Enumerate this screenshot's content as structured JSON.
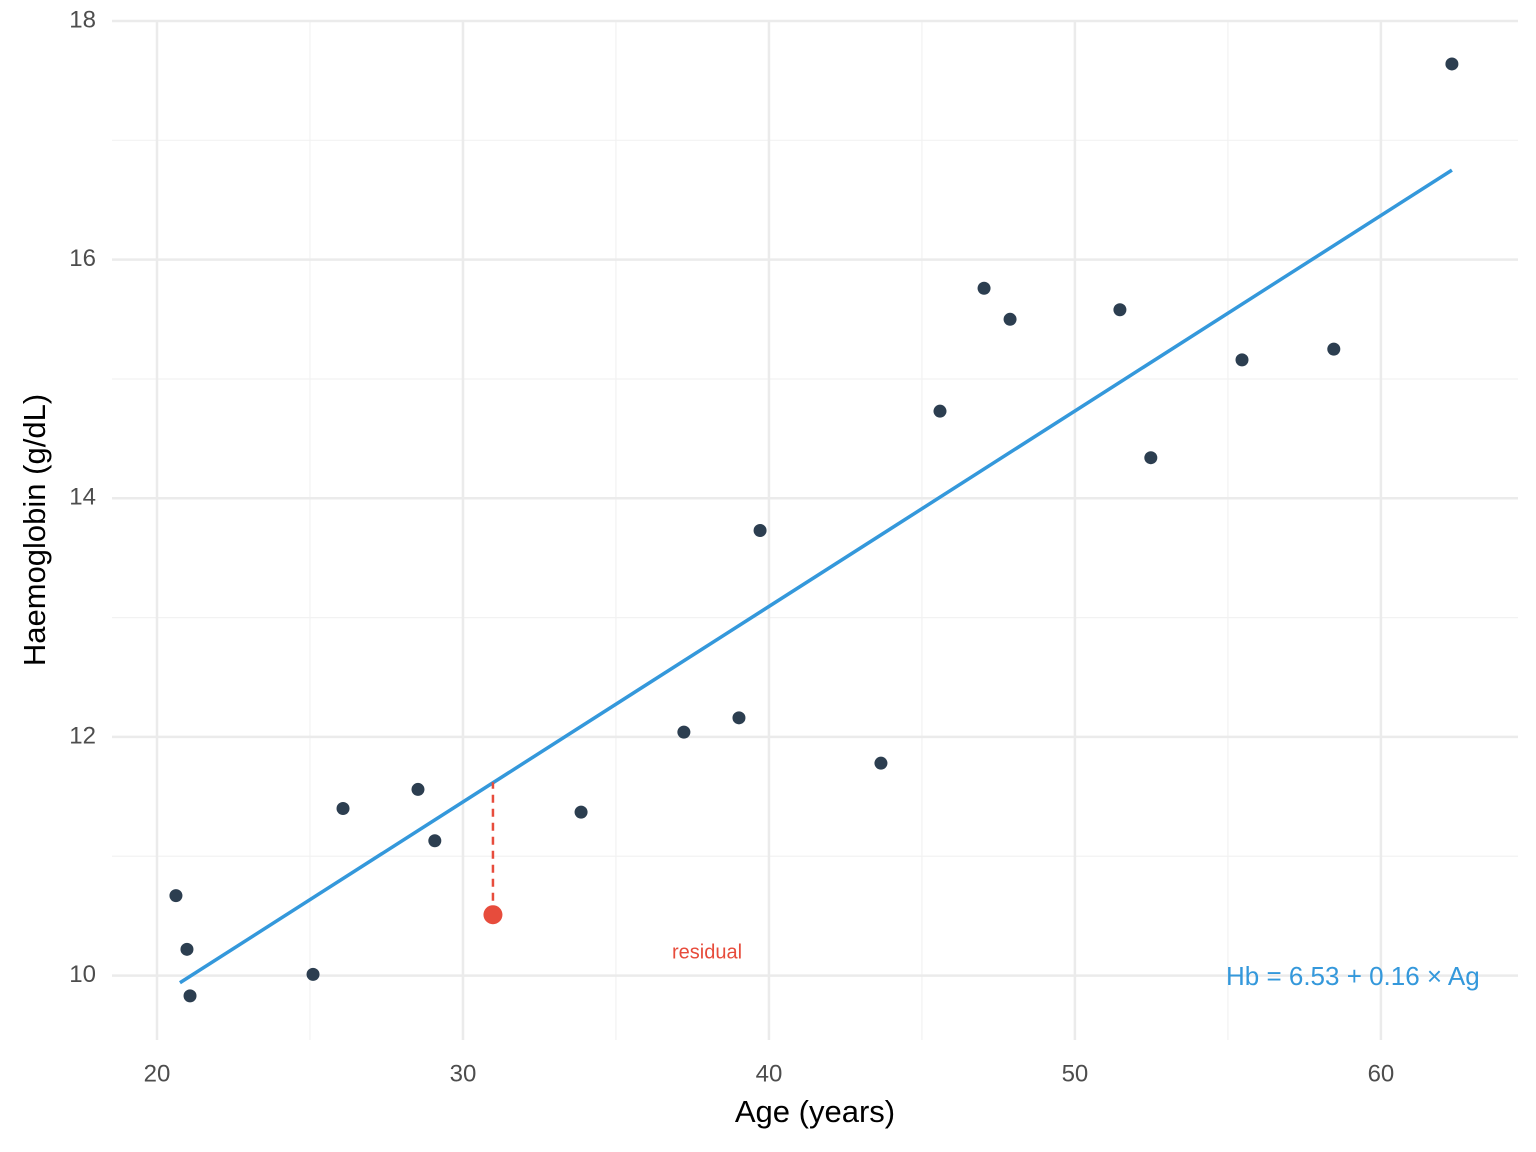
{
  "chart_data": {
    "type": "scatter",
    "x_label": "Age (years)",
    "y_label": "Haemoglobin (g/dL)",
    "x": [
      20.62,
      20.98,
      21.08,
      25.1,
      26.08,
      28.53,
      29.08,
      33.86,
      37.22,
      39.02,
      39.71,
      43.66,
      45.59,
      47.03,
      47.88,
      51.47,
      52.48,
      55.46,
      58.46,
      62.32
    ],
    "values": [
      10.67,
      10.22,
      9.83,
      10.01,
      11.4,
      11.56,
      11.13,
      11.37,
      12.04,
      12.16,
      13.73,
      11.78,
      14.73,
      15.76,
      15.5,
      15.58,
      14.34,
      15.16,
      15.25,
      17.64
    ],
    "color": "#2c3e50",
    "fit_line": {
      "color": "#3498db",
      "x": [
        20.75,
        62.32
      ],
      "values": [
        9.94,
        16.75
      ]
    },
    "highlight": {
      "color": "#e74c3c",
      "x": 30.98,
      "value": 10.51,
      "fitted": 11.62
    },
    "annotations": [
      {
        "text": "residual",
        "color": "#e74c3c"
      },
      {
        "text": "Hb = 6.53 + 0.16 × Ag",
        "color": "#3498db"
      }
    ],
    "xlim": [
      18.53,
      64.48
    ],
    "ylim": [
      9.46,
      18.0
    ],
    "xticks": [
      20,
      30,
      40,
      50,
      60
    ],
    "yticks": [
      10,
      12,
      14,
      16,
      18
    ],
    "x_minor_ticks": [
      25,
      35,
      45,
      55
    ],
    "y_minor_ticks": [
      11,
      13,
      15,
      17
    ],
    "grid": true
  }
}
